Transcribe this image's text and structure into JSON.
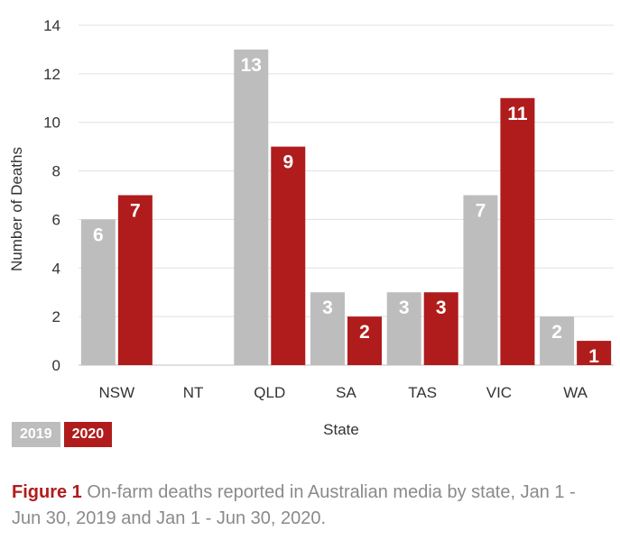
{
  "chart_data": {
    "type": "bar",
    "categories": [
      "NSW",
      "NT",
      "QLD",
      "SA",
      "TAS",
      "VIC",
      "WA"
    ],
    "series": [
      {
        "name": "2019",
        "color": "#bdbdbd",
        "values": [
          6,
          null,
          13,
          3,
          3,
          7,
          2
        ]
      },
      {
        "name": "2020",
        "color": "#b01c1c",
        "values": [
          7,
          null,
          9,
          2,
          3,
          11,
          1
        ]
      }
    ],
    "xlabel": "State",
    "ylabel": "Number of Deaths",
    "ylim": [
      0,
      14
    ],
    "yticks": [
      0,
      2,
      4,
      6,
      8,
      10,
      12,
      14
    ],
    "grid": true,
    "legend_position": "bottom-left"
  },
  "caption": {
    "label": "Figure 1",
    "text": "On-farm deaths reported in Australian media by state, Jan 1 - Jun 30, 2019 and Jan 1 - Jun 30, 2020."
  }
}
